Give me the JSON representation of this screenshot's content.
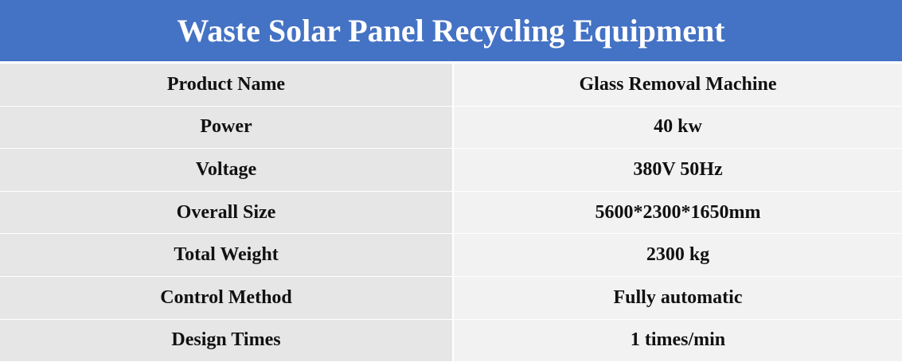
{
  "header": {
    "title": "Waste Solar Panel Recycling Equipment"
  },
  "table": {
    "rows": [
      [
        "Product Name",
        "Glass Removal Machine"
      ],
      [
        "Power",
        "40 kw"
      ],
      [
        "Voltage",
        "380V 50Hz"
      ],
      [
        "Overall Size",
        "5600*2300*1650mm"
      ],
      [
        "Total Weight",
        "2300 kg"
      ],
      [
        "Control Method",
        "Fully automatic"
      ],
      [
        "Design Times",
        "1 times/min"
      ]
    ]
  }
}
